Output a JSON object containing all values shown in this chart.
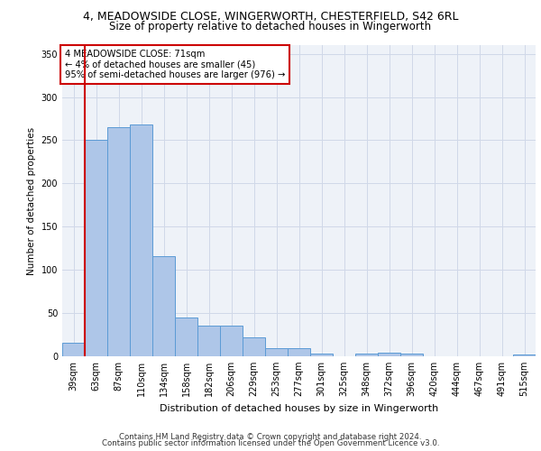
{
  "title_line1": "4, MEADOWSIDE CLOSE, WINGERWORTH, CHESTERFIELD, S42 6RL",
  "title_line2": "Size of property relative to detached houses in Wingerworth",
  "xlabel": "Distribution of detached houses by size in Wingerworth",
  "ylabel": "Number of detached properties",
  "footer_line1": "Contains HM Land Registry data © Crown copyright and database right 2024.",
  "footer_line2": "Contains public sector information licensed under the Open Government Licence v3.0.",
  "annotation_line1": "4 MEADOWSIDE CLOSE: 71sqm",
  "annotation_line2": "← 4% of detached houses are smaller (45)",
  "annotation_line3": "95% of semi-detached houses are larger (976) →",
  "bar_categories": [
    "39sqm",
    "63sqm",
    "87sqm",
    "110sqm",
    "134sqm",
    "158sqm",
    "182sqm",
    "206sqm",
    "229sqm",
    "253sqm",
    "277sqm",
    "301sqm",
    "325sqm",
    "348sqm",
    "372sqm",
    "396sqm",
    "420sqm",
    "444sqm",
    "467sqm",
    "491sqm",
    "515sqm"
  ],
  "bar_values": [
    16,
    250,
    265,
    268,
    116,
    45,
    35,
    35,
    22,
    9,
    9,
    3,
    0,
    3,
    4,
    3,
    0,
    0,
    0,
    0,
    2
  ],
  "bar_color": "#aec6e8",
  "bar_edge_color": "#5b9bd5",
  "vline_color": "#cc0000",
  "vline_x": 0.5,
  "annotation_box_edge_color": "#cc0000",
  "ylim": [
    0,
    360
  ],
  "yticks": [
    0,
    50,
    100,
    150,
    200,
    250,
    300,
    350
  ],
  "grid_color": "#d0d8e8",
  "bg_color": "#eef2f8",
  "fig_bg_color": "#ffffff"
}
